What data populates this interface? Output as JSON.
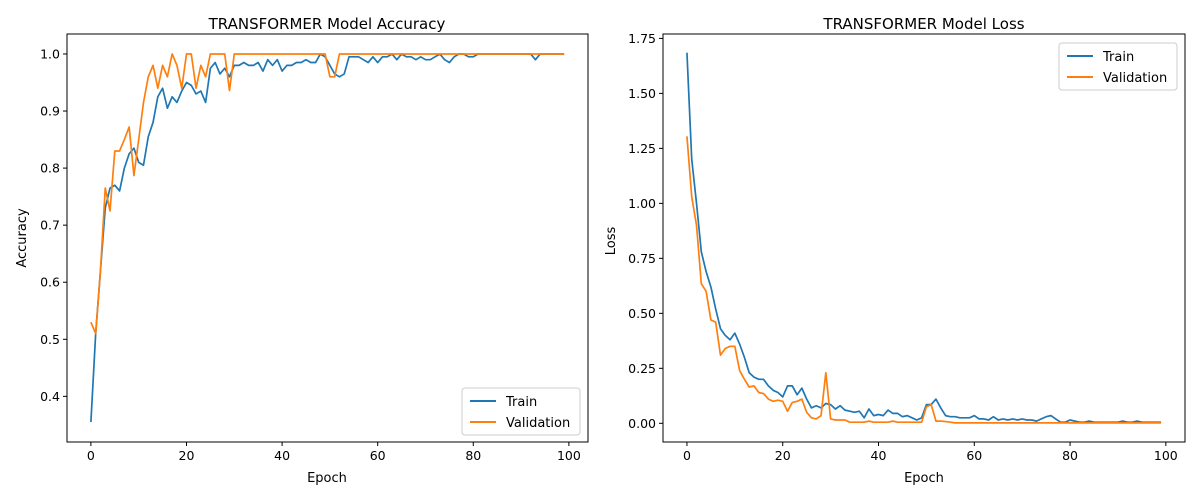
{
  "colors": {
    "train": "#1f77b4",
    "validation": "#ff7f0e"
  },
  "chart_data": [
    {
      "type": "line",
      "title": "TRANSFORMER Model Accuracy",
      "xlabel": "Epoch",
      "ylabel": "Accuracy",
      "xlim": [
        -5,
        104
      ],
      "ylim": [
        0.32,
        1.035
      ],
      "xticks": [
        0,
        20,
        40,
        60,
        80,
        100
      ],
      "yticks": [
        0.4,
        0.5,
        0.6,
        0.7,
        0.8,
        0.9,
        1.0
      ],
      "ytick_labels": [
        "0.4",
        "0.5",
        "0.6",
        "0.7",
        "0.8",
        "0.9",
        "1.0"
      ],
      "legend_position": "lower-right",
      "series": [
        {
          "name": "Train",
          "values": [
            0.355,
            0.51,
            0.62,
            0.73,
            0.765,
            0.77,
            0.76,
            0.8,
            0.825,
            0.835,
            0.81,
            0.805,
            0.855,
            0.88,
            0.925,
            0.94,
            0.905,
            0.925,
            0.915,
            0.935,
            0.95,
            0.945,
            0.93,
            0.935,
            0.915,
            0.975,
            0.985,
            0.965,
            0.975,
            0.96,
            0.98,
            0.98,
            0.985,
            0.98,
            0.98,
            0.985,
            0.97,
            0.99,
            0.98,
            0.99,
            0.97,
            0.98,
            0.98,
            0.985,
            0.985,
            0.99,
            0.985,
            0.985,
            1.0,
            0.995,
            0.98,
            0.965,
            0.96,
            0.965,
            0.995,
            0.995,
            0.995,
            0.99,
            0.985,
            0.995,
            0.985,
            0.995,
            0.995,
            1.0,
            0.99,
            1.0,
            0.995,
            0.995,
            0.99,
            0.995,
            0.99,
            0.99,
            0.995,
            1.0,
            0.99,
            0.985,
            0.995,
            1.0,
            1.0,
            0.995,
            0.995,
            1.0,
            1.0,
            1.0,
            1.0,
            1.0,
            1.0,
            1.0,
            1.0,
            1.0,
            1.0,
            1.0,
            1.0,
            0.99,
            1.0,
            1.0,
            1.0,
            1.0,
            1.0,
            1.0
          ]
        },
        {
          "name": "Validation",
          "values": [
            0.53,
            0.51,
            0.62,
            0.765,
            0.725,
            0.83,
            0.83,
            0.85,
            0.872,
            0.787,
            0.85,
            0.915,
            0.96,
            0.98,
            0.94,
            0.98,
            0.96,
            1.0,
            0.98,
            0.94,
            1.0,
            1.0,
            0.94,
            0.98,
            0.96,
            1.0,
            1.0,
            1.0,
            1.0,
            0.936,
            1.0,
            1.0,
            1.0,
            1.0,
            1.0,
            1.0,
            1.0,
            1.0,
            1.0,
            1.0,
            1.0,
            1.0,
            1.0,
            1.0,
            1.0,
            1.0,
            1.0,
            1.0,
            1.0,
            1.0,
            0.96,
            0.96,
            1.0,
            1.0,
            1.0,
            1.0,
            1.0,
            1.0,
            1.0,
            1.0,
            1.0,
            1.0,
            1.0,
            1.0,
            1.0,
            1.0,
            1.0,
            1.0,
            1.0,
            1.0,
            1.0,
            1.0,
            1.0,
            1.0,
            1.0,
            1.0,
            1.0,
            1.0,
            1.0,
            1.0,
            1.0,
            1.0,
            1.0,
            1.0,
            1.0,
            1.0,
            1.0,
            1.0,
            1.0,
            1.0,
            1.0,
            1.0,
            1.0,
            1.0,
            1.0,
            1.0,
            1.0,
            1.0,
            1.0,
            1.0
          ]
        }
      ]
    },
    {
      "type": "line",
      "title": "TRANSFORMER Model Loss",
      "xlabel": "Epoch",
      "ylabel": "Loss",
      "xlim": [
        -5,
        104
      ],
      "ylim": [
        -0.085,
        1.77
      ],
      "xticks": [
        0,
        20,
        40,
        60,
        80,
        100
      ],
      "yticks": [
        0.0,
        0.25,
        0.5,
        0.75,
        1.0,
        1.25,
        1.5,
        1.75
      ],
      "ytick_labels": [
        "0.00",
        "0.25",
        "0.50",
        "0.75",
        "1.00",
        "1.25",
        "1.50",
        "1.75"
      ],
      "legend_position": "upper-right",
      "series": [
        {
          "name": "Train",
          "values": [
            1.685,
            1.2,
            1.0,
            0.78,
            0.69,
            0.62,
            0.52,
            0.43,
            0.4,
            0.38,
            0.41,
            0.36,
            0.3,
            0.23,
            0.21,
            0.2,
            0.2,
            0.17,
            0.15,
            0.14,
            0.12,
            0.17,
            0.17,
            0.13,
            0.16,
            0.11,
            0.07,
            0.08,
            0.07,
            0.09,
            0.085,
            0.065,
            0.08,
            0.06,
            0.055,
            0.05,
            0.055,
            0.025,
            0.065,
            0.035,
            0.04,
            0.035,
            0.06,
            0.045,
            0.045,
            0.03,
            0.035,
            0.025,
            0.015,
            0.025,
            0.085,
            0.085,
            0.11,
            0.07,
            0.035,
            0.03,
            0.03,
            0.025,
            0.025,
            0.025,
            0.035,
            0.02,
            0.02,
            0.015,
            0.03,
            0.015,
            0.02,
            0.015,
            0.02,
            0.015,
            0.02,
            0.015,
            0.015,
            0.01,
            0.02,
            0.03,
            0.035,
            0.02,
            0.005,
            0.005,
            0.015,
            0.01,
            0.005,
            0.005,
            0.01,
            0.005,
            0.005,
            0.005,
            0.005,
            0.005,
            0.005,
            0.01,
            0.005,
            0.005,
            0.01,
            0.005,
            0.005,
            0.005,
            0.005,
            0.005
          ]
        },
        {
          "name": "Validation",
          "values": [
            1.305,
            1.03,
            0.9,
            0.635,
            0.6,
            0.47,
            0.46,
            0.31,
            0.34,
            0.35,
            0.35,
            0.24,
            0.2,
            0.165,
            0.17,
            0.14,
            0.135,
            0.11,
            0.1,
            0.105,
            0.1,
            0.055,
            0.095,
            0.1,
            0.11,
            0.05,
            0.025,
            0.02,
            0.035,
            0.23,
            0.02,
            0.015,
            0.015,
            0.015,
            0.005,
            0.005,
            0.005,
            0.005,
            0.01,
            0.005,
            0.005,
            0.005,
            0.005,
            0.01,
            0.005,
            0.005,
            0.005,
            0.005,
            0.005,
            0.005,
            0.075,
            0.085,
            0.01,
            0.01,
            0.008,
            0.005,
            0.002,
            0.002,
            0.002,
            0.002,
            0.002,
            0.002,
            0.002,
            0.002,
            0.002,
            0.002,
            0.002,
            0.002,
            0.002,
            0.002,
            0.002,
            0.002,
            0.002,
            0.002,
            0.002,
            0.002,
            0.002,
            0.002,
            0.002,
            0.002,
            0.002,
            0.002,
            0.002,
            0.002,
            0.002,
            0.002,
            0.002,
            0.002,
            0.002,
            0.002,
            0.002,
            0.002,
            0.002,
            0.002,
            0.002,
            0.002,
            0.002,
            0.002,
            0.002,
            0.002
          ]
        }
      ]
    }
  ]
}
